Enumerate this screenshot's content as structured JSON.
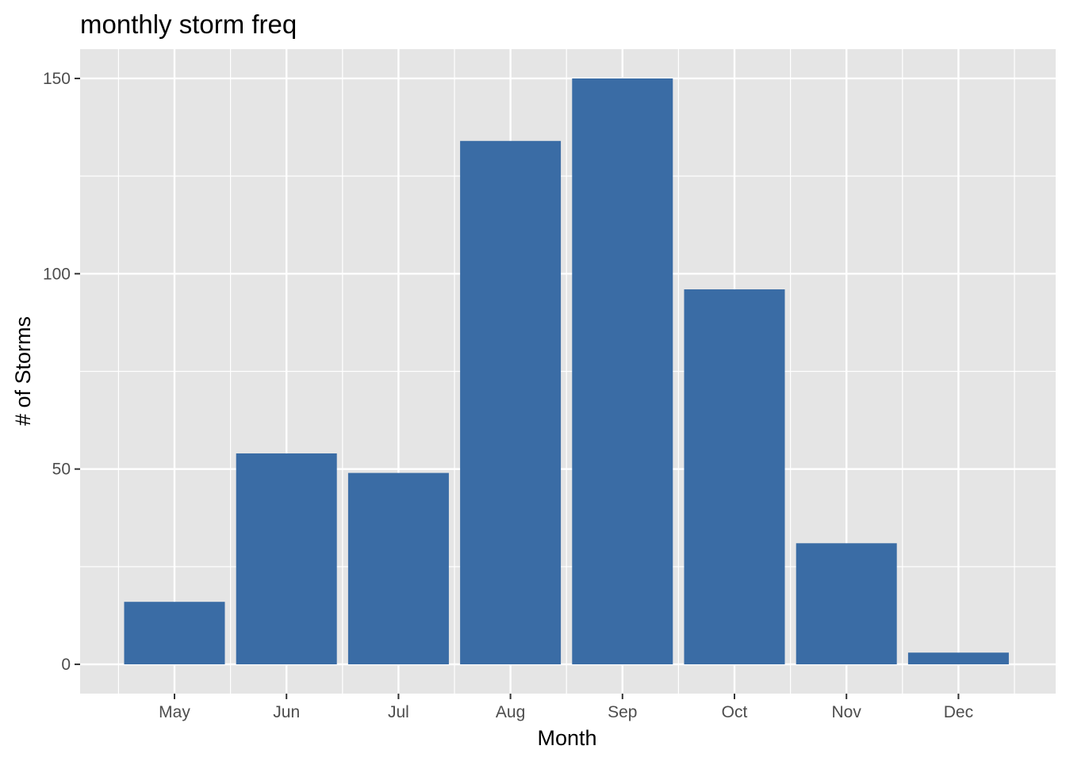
{
  "chart_data": {
    "type": "bar",
    "title": "monthly storm freq",
    "xlabel": "Month",
    "ylabel": "# of Storms",
    "categories": [
      "May",
      "Jun",
      "Jul",
      "Aug",
      "Sep",
      "Oct",
      "Nov",
      "Dec"
    ],
    "values": [
      16,
      54,
      49,
      134,
      150,
      96,
      31,
      3
    ],
    "ylim": [
      -7.5,
      157.5
    ],
    "yticks": [
      0,
      50,
      100,
      150
    ],
    "ytick_labels": [
      "0",
      "50",
      "100",
      "150"
    ],
    "grid": true,
    "legend": "none",
    "colors": {
      "bar": "#3a6ca5",
      "panel": "#e5e5e5",
      "grid": "#ffffff",
      "tick_label": "#4d4d4d",
      "text": "#000000"
    }
  }
}
